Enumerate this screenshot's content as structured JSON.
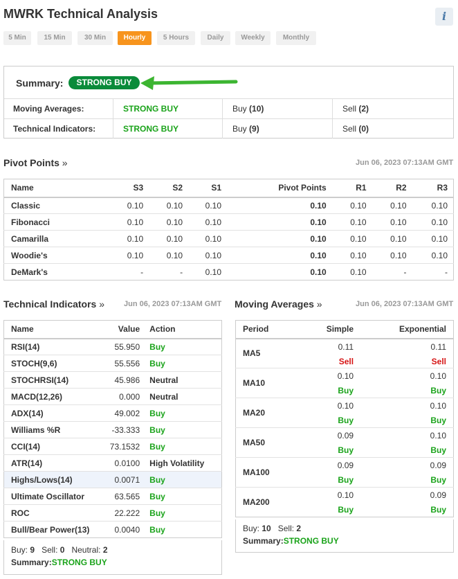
{
  "title": "MWRK Technical Analysis",
  "info_icon": "i",
  "tabs": [
    "5 Min",
    "15 Min",
    "30 Min",
    "Hourly",
    "5 Hours",
    "Daily",
    "Weekly",
    "Monthly"
  ],
  "active_tab": "Hourly",
  "summary": {
    "label": "Summary:",
    "value": "STRONG BUY",
    "rows": [
      {
        "label": "Moving Averages:",
        "signal": "STRONG BUY",
        "buy_label": "Buy",
        "buy": "(10)",
        "sell_label": "Sell",
        "sell": "(2)"
      },
      {
        "label": "Technical Indicators:",
        "signal": "STRONG BUY",
        "buy_label": "Buy",
        "buy": "(9)",
        "sell_label": "Sell",
        "sell": "(0)"
      }
    ]
  },
  "pivot": {
    "title": "Pivot Points",
    "raquo": "»",
    "date": "Jun 06, 2023 07:13AM GMT",
    "headers": [
      "Name",
      "S3",
      "S2",
      "S1",
      "Pivot Points",
      "R1",
      "R2",
      "R3"
    ],
    "rows": [
      [
        "Classic",
        "0.10",
        "0.10",
        "0.10",
        "0.10",
        "0.10",
        "0.10",
        "0.10"
      ],
      [
        "Fibonacci",
        "0.10",
        "0.10",
        "0.10",
        "0.10",
        "0.10",
        "0.10",
        "0.10"
      ],
      [
        "Camarilla",
        "0.10",
        "0.10",
        "0.10",
        "0.10",
        "0.10",
        "0.10",
        "0.10"
      ],
      [
        "Woodie's",
        "0.10",
        "0.10",
        "0.10",
        "0.10",
        "0.10",
        "0.10",
        "0.10"
      ],
      [
        "DeMark's",
        "-",
        "-",
        "0.10",
        "0.10",
        "0.10",
        "-",
        "-"
      ]
    ]
  },
  "technical": {
    "title": "Technical Indicators",
    "raquo": "»",
    "date": "Jun 06, 2023 07:13AM GMT",
    "headers": [
      "Name",
      "Value",
      "Action"
    ],
    "rows": [
      [
        "RSI(14)",
        "55.950",
        "Buy"
      ],
      [
        "STOCH(9,6)",
        "55.556",
        "Buy"
      ],
      [
        "STOCHRSI(14)",
        "45.986",
        "Neutral"
      ],
      [
        "MACD(12,26)",
        "0.000",
        "Neutral"
      ],
      [
        "ADX(14)",
        "49.002",
        "Buy"
      ],
      [
        "Williams %R",
        "-33.333",
        "Buy"
      ],
      [
        "CCI(14)",
        "73.1532",
        "Buy"
      ],
      [
        "ATR(14)",
        "0.0100",
        "High Volatility"
      ],
      [
        "Highs/Lows(14)",
        "0.0071",
        "Buy"
      ],
      [
        "Ultimate Oscillator",
        "63.565",
        "Buy"
      ],
      [
        "ROC",
        "22.222",
        "Buy"
      ],
      [
        "Bull/Bear Power(13)",
        "0.0040",
        "Buy"
      ]
    ],
    "footer": {
      "buy_label": "Buy:",
      "buy": "9",
      "sell_label": "Sell:",
      "sell": "0",
      "neutral_label": "Neutral:",
      "neutral": "2",
      "summary_label": "Summary:",
      "summary": "STRONG BUY"
    }
  },
  "moving": {
    "title": "Moving Averages",
    "raquo": "»",
    "date": "Jun 06, 2023 07:13AM GMT",
    "headers": [
      "Period",
      "Simple",
      "Exponential"
    ],
    "rows": [
      {
        "period": "MA5",
        "simple": "0.11",
        "simple_action": "Sell",
        "exp": "0.11",
        "exp_action": "Sell"
      },
      {
        "period": "MA10",
        "simple": "0.10",
        "simple_action": "Buy",
        "exp": "0.10",
        "exp_action": "Buy"
      },
      {
        "period": "MA20",
        "simple": "0.10",
        "simple_action": "Buy",
        "exp": "0.10",
        "exp_action": "Buy"
      },
      {
        "period": "MA50",
        "simple": "0.09",
        "simple_action": "Buy",
        "exp": "0.10",
        "exp_action": "Buy"
      },
      {
        "period": "MA100",
        "simple": "0.09",
        "simple_action": "Buy",
        "exp": "0.09",
        "exp_action": "Buy"
      },
      {
        "period": "MA200",
        "simple": "0.10",
        "simple_action": "Buy",
        "exp": "0.09",
        "exp_action": "Buy"
      }
    ],
    "footer": {
      "buy_label": "Buy:",
      "buy": "10",
      "sell_label": "Sell:",
      "sell": "2",
      "summary_label": "Summary:",
      "summary": "STRONG BUY"
    }
  },
  "colors": {
    "buy": "#1aa31a",
    "sell": "#d61414",
    "accent": "#f7941d",
    "badge": "#0a8b3a"
  }
}
